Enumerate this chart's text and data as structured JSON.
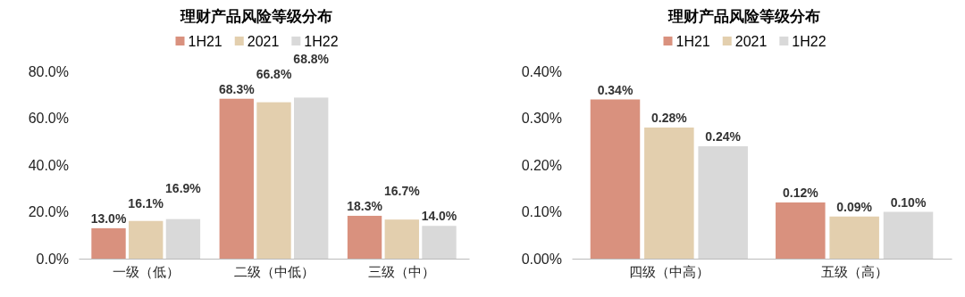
{
  "chart_data": [
    {
      "type": "bar",
      "title": "理财产品风险等级分布",
      "categories": [
        "一级（低）",
        "二级（中低）",
        "三级（中）"
      ],
      "series": [
        {
          "name": "1H21",
          "color": "#d9917e",
          "values": [
            13.0,
            68.3,
            18.3
          ],
          "value_labels": [
            "13.0%",
            "68.3%",
            "18.3%"
          ]
        },
        {
          "name": "2021",
          "color": "#e3cfae",
          "values": [
            16.1,
            66.8,
            16.7
          ],
          "value_labels": [
            "16.1%",
            "66.8%",
            "16.7%"
          ]
        },
        {
          "name": "1H22",
          "color": "#d9d9d9",
          "values": [
            16.9,
            68.8,
            14.0
          ],
          "value_labels": [
            "16.9%",
            "68.8%",
            "14.0%"
          ]
        }
      ],
      "ylim": [
        0,
        80
      ],
      "yticks": [
        {
          "value": 0,
          "label": "0.0%"
        },
        {
          "value": 20,
          "label": "20.0%"
        },
        {
          "value": 40,
          "label": "40.0%"
        },
        {
          "value": 60,
          "label": "60.0%"
        },
        {
          "value": 80,
          "label": "80.0%"
        }
      ],
      "legend": "top",
      "grid": false
    },
    {
      "type": "bar",
      "title": "理财产品风险等级分布",
      "categories": [
        "四级（中高）",
        "五级（高）"
      ],
      "series": [
        {
          "name": "1H21",
          "color": "#d9917e",
          "values": [
            0.34,
            0.12
          ],
          "value_labels": [
            "0.34%",
            "0.12%"
          ]
        },
        {
          "name": "2021",
          "color": "#e3cfae",
          "values": [
            0.28,
            0.09
          ],
          "value_labels": [
            "0.28%",
            "0.09%"
          ]
        },
        {
          "name": "1H22",
          "color": "#d9d9d9",
          "values": [
            0.24,
            0.1
          ],
          "value_labels": [
            "0.24%",
            "0.10%"
          ]
        }
      ],
      "ylim": [
        0,
        0.4
      ],
      "yticks": [
        {
          "value": 0,
          "label": "0.00%"
        },
        {
          "value": 0.1,
          "label": "0.10%"
        },
        {
          "value": 0.2,
          "label": "0.20%"
        },
        {
          "value": 0.3,
          "label": "0.30%"
        },
        {
          "value": 0.4,
          "label": "0.40%"
        }
      ],
      "legend": "top",
      "grid": false
    }
  ]
}
